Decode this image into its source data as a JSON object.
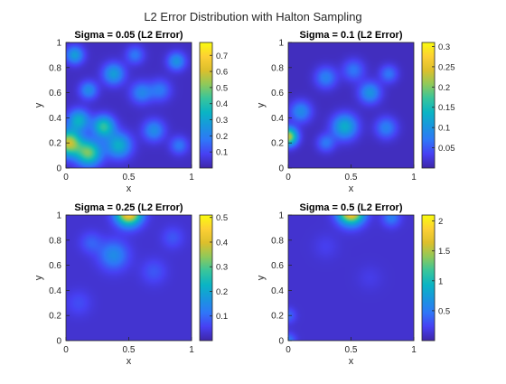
{
  "figure": {
    "title": "L2 Error Distribution with Halton Sampling"
  },
  "colors": {
    "colormap": "parula",
    "stops": [
      "#3e26a8",
      "#4740f3",
      "#2f76f8",
      "#1996de",
      "#0ab4c4",
      "#38c59b",
      "#8fc95a",
      "#dcbf2c",
      "#fdd034",
      "#f9fb0e"
    ],
    "axis": "#262626",
    "background": "#ffffff"
  },
  "chart_data": [
    {
      "type": "heatmap",
      "title": "Sigma = 0.05 (L2 Error)",
      "xlabel": "x",
      "ylabel": "y",
      "xlim": [
        0,
        1
      ],
      "ylim": [
        0,
        1
      ],
      "xticks": [
        "0",
        "0.5",
        "1"
      ],
      "yticks": [
        "0",
        "0.2",
        "0.4",
        "0.6",
        "0.8",
        "1"
      ],
      "colorbar": {
        "range": [
          0,
          0.78
        ],
        "ticks": [
          0.1,
          0.2,
          0.3,
          0.4,
          0.5,
          0.6,
          0.7
        ],
        "ticklabels": [
          "0.1",
          "0.2",
          "0.3",
          "0.4",
          "0.5",
          "0.6",
          "0.7"
        ]
      },
      "base": 0.03,
      "hotspots": [
        {
          "x": 0.02,
          "y": 0.2,
          "value": 0.55,
          "spread": 0.07
        },
        {
          "x": 0.18,
          "y": 0.12,
          "value": 0.45,
          "spread": 0.07
        },
        {
          "x": 0.1,
          "y": 0.38,
          "value": 0.3,
          "spread": 0.06
        },
        {
          "x": 0.3,
          "y": 0.33,
          "value": 0.38,
          "spread": 0.06
        },
        {
          "x": 0.42,
          "y": 0.18,
          "value": 0.3,
          "spread": 0.07
        },
        {
          "x": 0.38,
          "y": 0.75,
          "value": 0.25,
          "spread": 0.06
        },
        {
          "x": 0.07,
          "y": 0.9,
          "value": 0.25,
          "spread": 0.05
        },
        {
          "x": 0.18,
          "y": 0.62,
          "value": 0.2,
          "spread": 0.05
        },
        {
          "x": 0.7,
          "y": 0.3,
          "value": 0.2,
          "spread": 0.06
        },
        {
          "x": 0.6,
          "y": 0.6,
          "value": 0.18,
          "spread": 0.06
        },
        {
          "x": 0.75,
          "y": 0.62,
          "value": 0.15,
          "spread": 0.06
        },
        {
          "x": 0.88,
          "y": 0.85,
          "value": 0.22,
          "spread": 0.05
        },
        {
          "x": 0.55,
          "y": 0.9,
          "value": 0.15,
          "spread": 0.05
        },
        {
          "x": 0.9,
          "y": 0.18,
          "value": 0.15,
          "spread": 0.05
        }
      ]
    },
    {
      "type": "heatmap",
      "title": "Sigma = 0.1 (L2 Error)",
      "xlabel": "x",
      "ylabel": "y",
      "xlim": [
        0,
        1
      ],
      "ylim": [
        0,
        1
      ],
      "xticks": [
        "0",
        "0.5",
        "1"
      ],
      "yticks": [
        "0",
        "0.2",
        "0.4",
        "0.6",
        "0.8",
        "1"
      ],
      "colorbar": {
        "range": [
          0,
          0.31
        ],
        "ticks": [
          0.05,
          0.1,
          0.15,
          0.2,
          0.25,
          0.3
        ],
        "ticklabels": [
          "0.05",
          "0.1",
          "0.15",
          "0.2",
          "0.25",
          "0.3"
        ]
      },
      "base": 0.01,
      "hotspots": [
        {
          "x": 0.0,
          "y": 0.25,
          "value": 0.22,
          "spread": 0.05
        },
        {
          "x": 0.1,
          "y": 0.45,
          "value": 0.08,
          "spread": 0.06
        },
        {
          "x": 0.45,
          "y": 0.33,
          "value": 0.12,
          "spread": 0.07
        },
        {
          "x": 0.65,
          "y": 0.6,
          "value": 0.09,
          "spread": 0.06
        },
        {
          "x": 0.3,
          "y": 0.72,
          "value": 0.07,
          "spread": 0.06
        },
        {
          "x": 0.52,
          "y": 0.78,
          "value": 0.06,
          "spread": 0.06
        },
        {
          "x": 0.8,
          "y": 0.75,
          "value": 0.06,
          "spread": 0.05
        },
        {
          "x": 0.78,
          "y": 0.32,
          "value": 0.07,
          "spread": 0.06
        },
        {
          "x": 0.3,
          "y": 0.2,
          "value": 0.06,
          "spread": 0.05
        }
      ]
    },
    {
      "type": "heatmap",
      "title": "Sigma = 0.25 (L2 Error)",
      "xlabel": "x",
      "ylabel": "y",
      "xlim": [
        0,
        1
      ],
      "ylim": [
        0,
        1
      ],
      "xticks": [
        "0",
        "0.5",
        "1"
      ],
      "yticks": [
        "0",
        "0.2",
        "0.4",
        "0.6",
        "0.8",
        "1"
      ],
      "colorbar": {
        "range": [
          0,
          0.51
        ],
        "ticks": [
          0.1,
          0.2,
          0.3,
          0.4,
          0.5
        ],
        "ticklabels": [
          "0.1",
          "0.2",
          "0.3",
          "0.4",
          "0.5"
        ]
      },
      "base": 0.03,
      "hotspots": [
        {
          "x": 0.5,
          "y": 1.02,
          "value": 0.45,
          "spread": 0.07
        },
        {
          "x": 0.38,
          "y": 0.68,
          "value": 0.12,
          "spread": 0.08
        },
        {
          "x": 0.2,
          "y": 0.78,
          "value": 0.06,
          "spread": 0.06
        },
        {
          "x": 0.7,
          "y": 0.55,
          "value": 0.05,
          "spread": 0.07
        },
        {
          "x": 0.85,
          "y": 0.82,
          "value": 0.05,
          "spread": 0.06
        },
        {
          "x": 0.1,
          "y": 0.3,
          "value": 0.04,
          "spread": 0.07
        }
      ]
    },
    {
      "type": "heatmap",
      "title": "Sigma = 0.5 (L2 Error)",
      "xlabel": "x",
      "ylabel": "y",
      "xlim": [
        0,
        1
      ],
      "ylim": [
        0,
        1
      ],
      "xticks": [
        "0",
        "0.5",
        "1"
      ],
      "yticks": [
        "0",
        "0.2",
        "0.4",
        "0.6",
        "0.8",
        "1"
      ],
      "colorbar": {
        "range": [
          0,
          2.1
        ],
        "ticks": [
          0.5,
          1,
          1.5,
          2
        ],
        "ticklabels": [
          "0.5",
          "1",
          "1.5",
          "2"
        ]
      },
      "base": 0.12,
      "hotspots": [
        {
          "x": 0.5,
          "y": 1.03,
          "value": 1.9,
          "spread": 0.07
        },
        {
          "x": 0.82,
          "y": 0.98,
          "value": 0.4,
          "spread": 0.05
        },
        {
          "x": 0.0,
          "y": 0.2,
          "value": 0.3,
          "spread": 0.04
        },
        {
          "x": 0.0,
          "y": 0.0,
          "value": 0.4,
          "spread": 0.04
        },
        {
          "x": 0.3,
          "y": 0.75,
          "value": 0.1,
          "spread": 0.07
        },
        {
          "x": 0.65,
          "y": 0.5,
          "value": 0.08,
          "spread": 0.07
        }
      ]
    }
  ]
}
